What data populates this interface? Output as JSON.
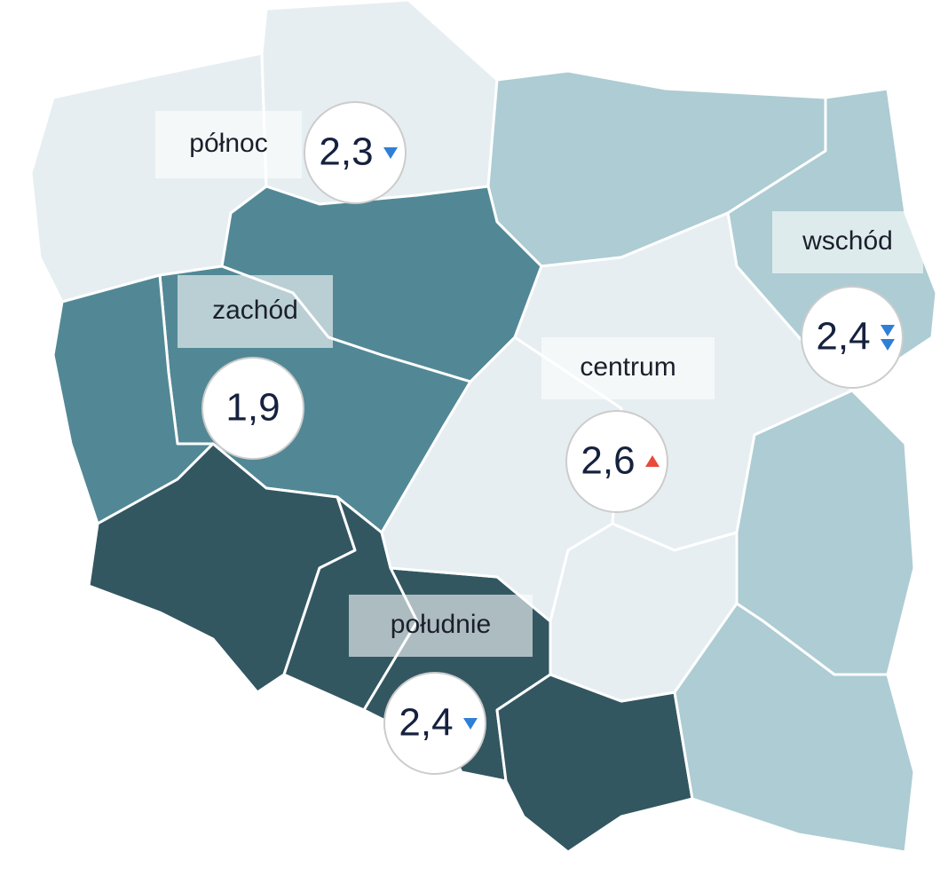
{
  "regions": [
    {
      "label": "północ",
      "value": "2,3",
      "arrows": [
        "down"
      ]
    },
    {
      "label": "zachód",
      "value": "1,9",
      "arrows": []
    },
    {
      "label": "wschód",
      "value": "2,4",
      "arrows": [
        "down",
        "down"
      ]
    },
    {
      "label": "centrum",
      "value": "2,6",
      "arrows": [
        "up"
      ]
    },
    {
      "label": "południe",
      "value": "2,4",
      "arrows": [
        "down"
      ]
    }
  ]
}
